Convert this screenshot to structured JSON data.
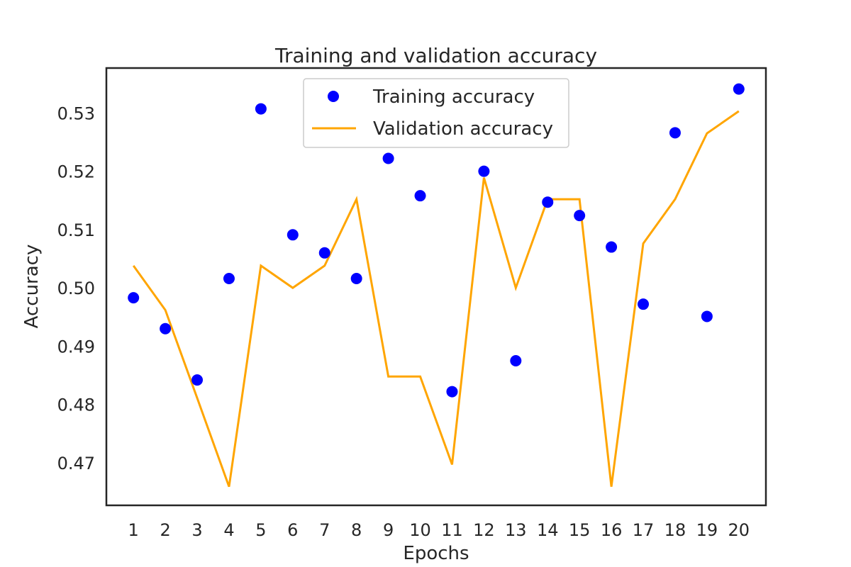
{
  "chart_data": {
    "type": "line",
    "title": "Training and validation accuracy",
    "xlabel": "Epochs",
    "ylabel": "Accuracy",
    "x": [
      1,
      2,
      3,
      4,
      5,
      6,
      7,
      8,
      9,
      10,
      11,
      12,
      13,
      14,
      15,
      16,
      17,
      18,
      19,
      20
    ],
    "x_tick_labels": [
      "1",
      "2",
      "3",
      "4",
      "5",
      "6",
      "7",
      "8",
      "9",
      "10",
      "11",
      "12",
      "13",
      "14",
      "15",
      "16",
      "17",
      "18",
      "19",
      "20"
    ],
    "y_tick_labels": [
      "0.47",
      "0.48",
      "0.49",
      "0.50",
      "0.51",
      "0.52",
      "0.53"
    ],
    "y_ticks": [
      0.47,
      0.48,
      0.49,
      0.5,
      0.51,
      0.52,
      0.53
    ],
    "xlim": [
      0.15,
      20.85
    ],
    "ylim": [
      0.4627,
      0.5377
    ],
    "grid": false,
    "legend_position": "top-center",
    "series": [
      {
        "name": "Training accuracy",
        "kind": "scatter",
        "color": "#0000ff",
        "values": [
          0.4983,
          0.493,
          0.4842,
          0.5016,
          0.5307,
          0.5091,
          0.506,
          0.5016,
          0.5222,
          0.5158,
          0.4822,
          0.52,
          0.4875,
          0.5147,
          0.5124,
          0.507,
          0.4972,
          0.5266,
          0.4951,
          0.5341
        ]
      },
      {
        "name": "Validation accuracy",
        "kind": "line",
        "color": "#ffa500",
        "values": [
          0.5038,
          0.4962,
          0.4811,
          0.4659,
          0.5038,
          0.5,
          0.5038,
          0.5152,
          0.4848,
          0.4848,
          0.4697,
          0.5189,
          0.5,
          0.5152,
          0.5152,
          0.4659,
          0.5076,
          0.5152,
          0.5265,
          0.5303
        ]
      }
    ]
  }
}
